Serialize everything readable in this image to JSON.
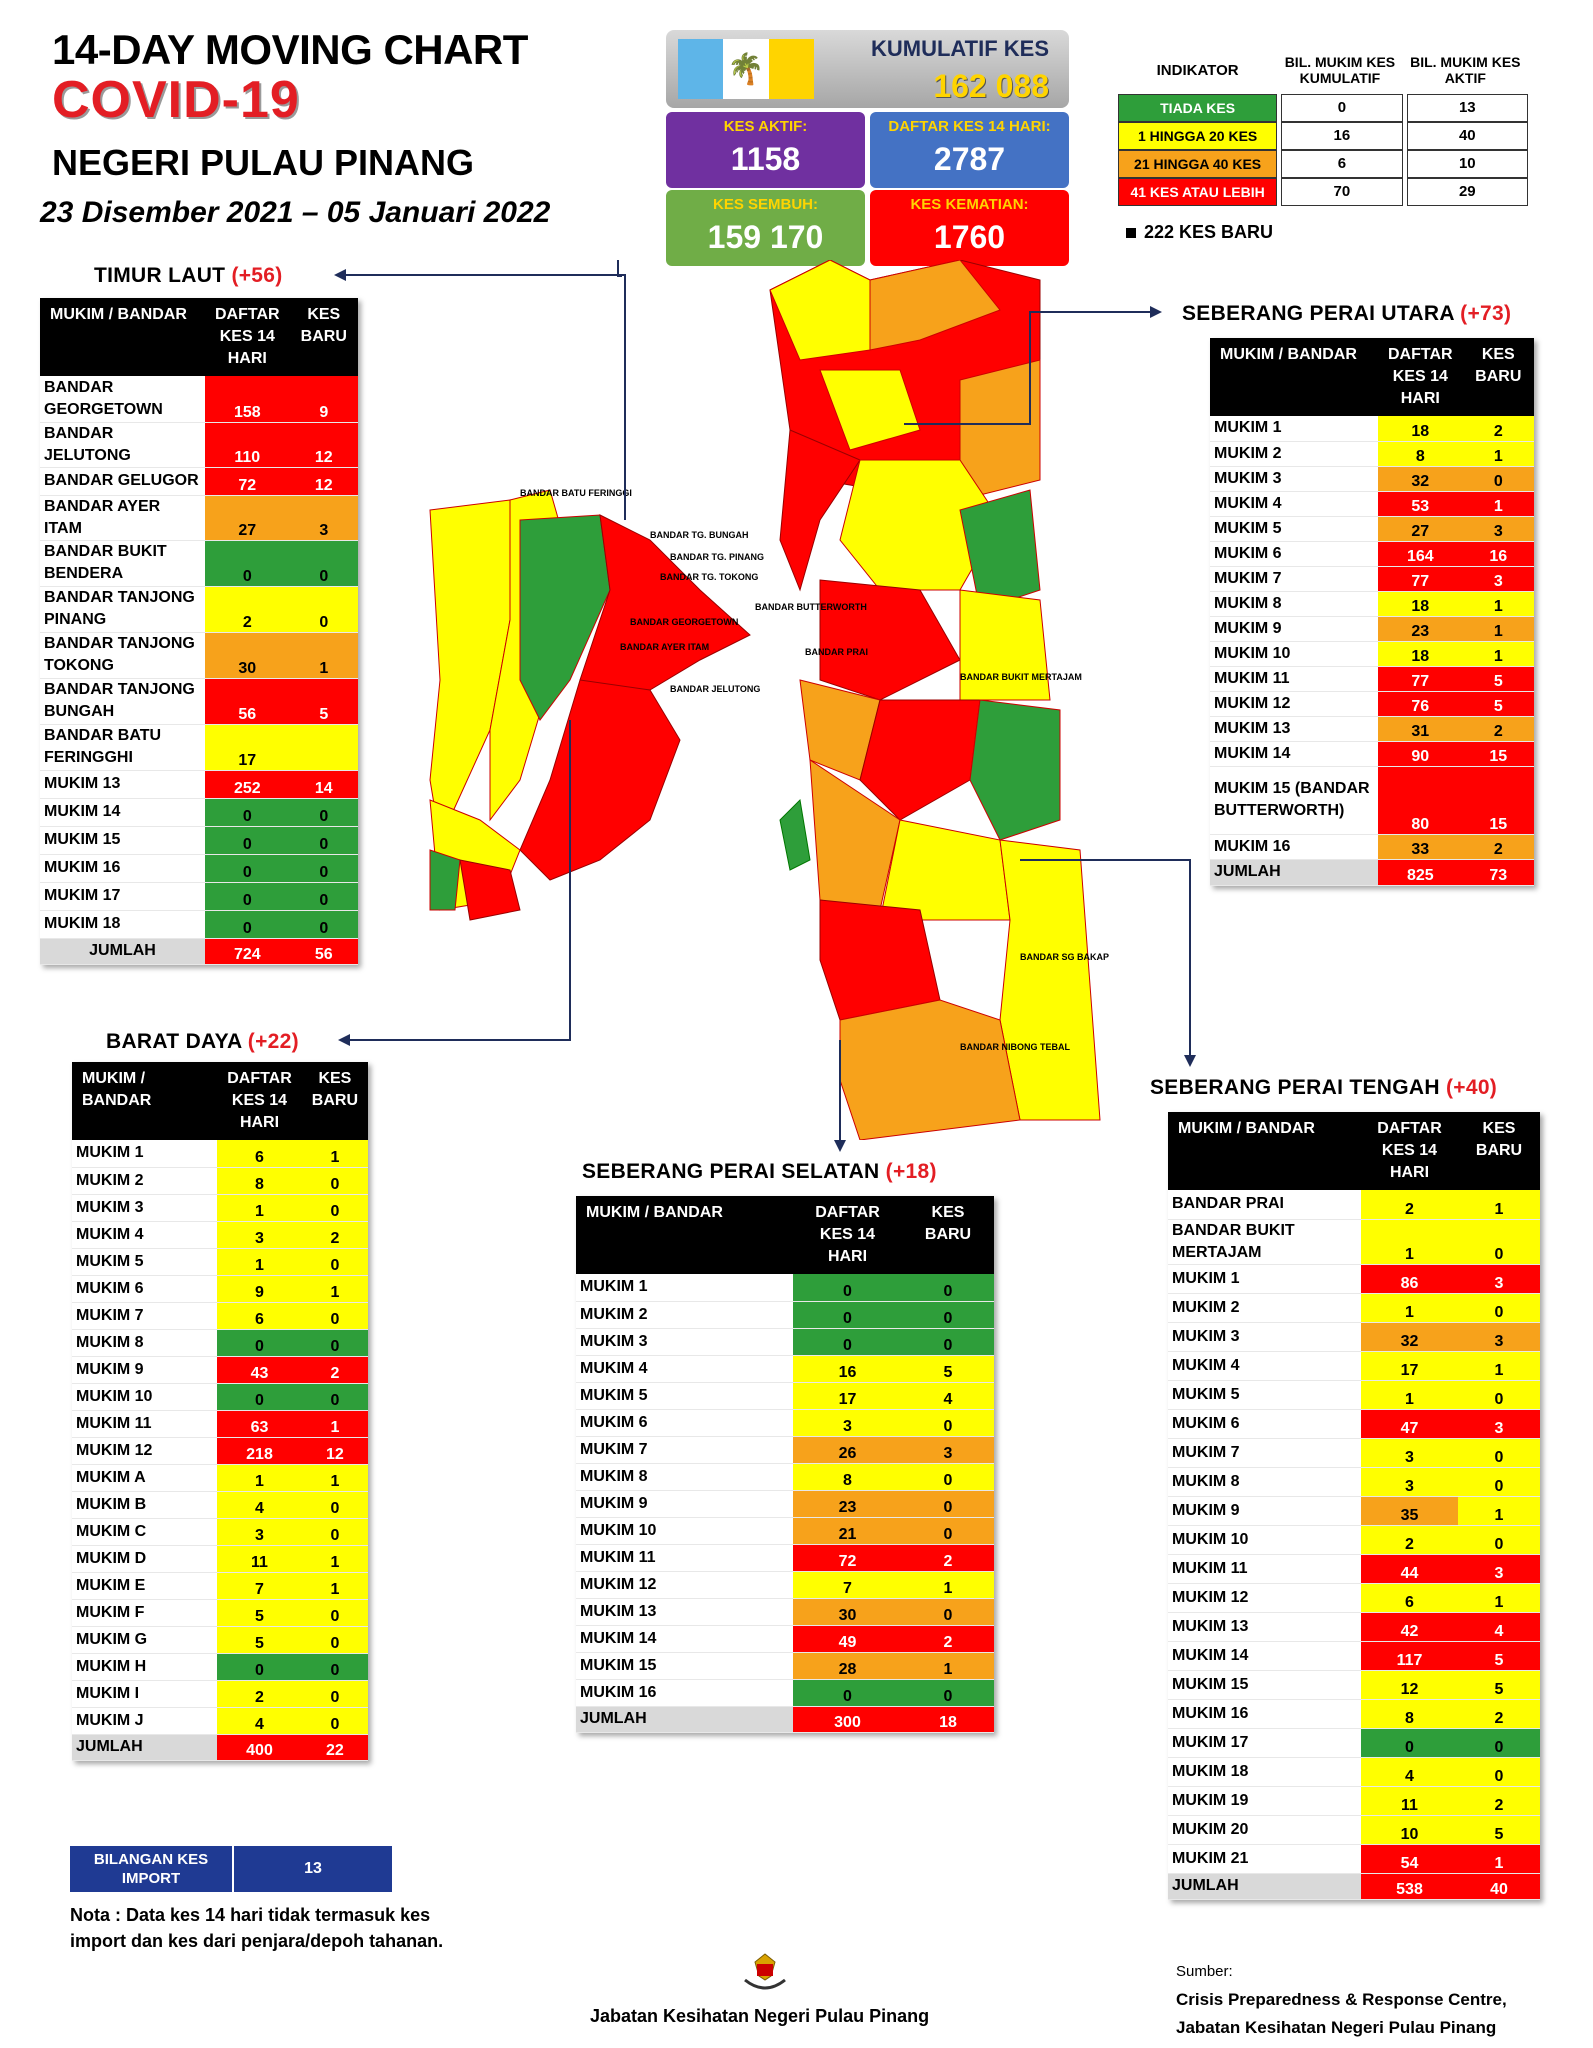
{
  "header": {
    "line1": "14-DAY MOVING CHART",
    "line2": "COVID-19",
    "line3": "NEGERI PULAU PINANG",
    "period": "23 Disember 2021 – 05 Januari 2022"
  },
  "summary": {
    "cumulative_label": "KUMULATIF KES",
    "cumulative_value": "162 088",
    "active_label": "KES AKTIF:",
    "active_value": "1158",
    "list14_label": "DAFTAR KES 14 HARI:",
    "list14_value": "2787",
    "recovered_label": "KES SEMBUH:",
    "recovered_value": "159 170",
    "deaths_label": "KES KEMATIAN:",
    "deaths_value": "1760"
  },
  "legend": {
    "col_indicator": "INDIKATOR",
    "col_cumulative": "BIL. MUKIM KES KUMULATIF",
    "col_active": "BIL. MUKIM KES AKTIF",
    "rows": [
      {
        "label": "TIADA KES",
        "cumulative": "0",
        "active": "13",
        "color": "#2e9e3a"
      },
      {
        "label": "1 HINGGA 20 KES",
        "cumulative": "16",
        "active": "40",
        "color": "#ffff00"
      },
      {
        "label": "21 HINGGA 40 KES",
        "cumulative": "6",
        "active": "10",
        "color": "#f7a21b"
      },
      {
        "label": "41 KES ATAU LEBIH",
        "cumulative": "70",
        "active": "29",
        "color": "#ff0000"
      }
    ],
    "new_cases": "222 KES BARU"
  },
  "columns": {
    "mukim": "MUKIM / BANDAR",
    "daftar": "DAFTAR KES 14 HARI",
    "baru": "KES BARU"
  },
  "regions": {
    "timur_laut": {
      "name": "TIMUR LAUT",
      "delta": "(+56)",
      "rows": [
        [
          "BANDAR GEORGETOWN",
          "158",
          "9",
          "r",
          "r"
        ],
        [
          "BANDAR JELUTONG",
          "110",
          "12",
          "r",
          "r"
        ],
        [
          "BANDAR GELUGOR",
          "72",
          "12",
          "r",
          "r"
        ],
        [
          "BANDAR AYER ITAM",
          "27",
          "3",
          "o",
          "o"
        ],
        [
          "BANDAR BUKIT BENDERA",
          "0",
          "0",
          "g",
          "g"
        ],
        [
          "BANDAR TANJONG PINANG",
          "2",
          "0",
          "y",
          "y"
        ],
        [
          "BANDAR TANJONG TOKONG",
          "30",
          "1",
          "o",
          "o"
        ],
        [
          "BANDAR TANJONG BUNGAH",
          "56",
          "5",
          "r",
          "r"
        ],
        [
          "BANDAR BATU FERINGGHI",
          "17",
          "",
          "y",
          "y"
        ],
        [
          "MUKIM 13",
          "252",
          "14",
          "r",
          "r"
        ],
        [
          "MUKIM 14",
          "0",
          "0",
          "g",
          "g"
        ],
        [
          "MUKIM 15",
          "0",
          "0",
          "g",
          "g"
        ],
        [
          "MUKIM 16",
          "0",
          "0",
          "g",
          "g"
        ],
        [
          "MUKIM 17",
          "0",
          "0",
          "g",
          "g"
        ],
        [
          "MUKIM 18",
          "0",
          "0",
          "g",
          "g"
        ]
      ],
      "total_label": "JUMLAH",
      "total": [
        "724",
        "56"
      ]
    },
    "barat_daya": {
      "name": "BARAT DAYA",
      "delta": "(+22)",
      "rows": [
        [
          "MUKIM 1",
          "6",
          "1",
          "y",
          "y"
        ],
        [
          "MUKIM 2",
          "8",
          "0",
          "y",
          "y"
        ],
        [
          "MUKIM 3",
          "1",
          "0",
          "y",
          "y"
        ],
        [
          "MUKIM 4",
          "3",
          "2",
          "y",
          "y"
        ],
        [
          "MUKIM 5",
          "1",
          "0",
          "y",
          "y"
        ],
        [
          "MUKIM 6",
          "9",
          "1",
          "y",
          "y"
        ],
        [
          "MUKIM 7",
          "6",
          "0",
          "y",
          "y"
        ],
        [
          "MUKIM 8",
          "0",
          "0",
          "g",
          "g"
        ],
        [
          "MUKIM 9",
          "43",
          "2",
          "r",
          "r"
        ],
        [
          "MUKIM 10",
          "0",
          "0",
          "g",
          "g"
        ],
        [
          "MUKIM 11",
          "63",
          "1",
          "r",
          "r"
        ],
        [
          "MUKIM 12",
          "218",
          "12",
          "r",
          "r"
        ],
        [
          "MUKIM A",
          "1",
          "1",
          "y",
          "y"
        ],
        [
          "MUKIM B",
          "4",
          "0",
          "y",
          "y"
        ],
        [
          "MUKIM C",
          "3",
          "0",
          "y",
          "y"
        ],
        [
          "MUKIM D",
          "11",
          "1",
          "y",
          "y"
        ],
        [
          "MUKIM E",
          "7",
          "1",
          "y",
          "y"
        ],
        [
          "MUKIM F",
          "5",
          "0",
          "y",
          "y"
        ],
        [
          "MUKIM G",
          "5",
          "0",
          "y",
          "y"
        ],
        [
          "MUKIM H",
          "0",
          "0",
          "g",
          "g"
        ],
        [
          "MUKIM I",
          "2",
          "0",
          "y",
          "y"
        ],
        [
          "MUKIM J",
          "4",
          "0",
          "y",
          "y"
        ]
      ],
      "total_label": "JUMLAH",
      "total": [
        "400",
        "22"
      ]
    },
    "spu": {
      "name": "SEBERANG PERAI UTARA",
      "delta": "(+73)",
      "rows": [
        [
          "MUKIM 1",
          "18",
          "2",
          "y",
          "y"
        ],
        [
          "MUKIM 2",
          "8",
          "1",
          "y",
          "y"
        ],
        [
          "MUKIM 3",
          "32",
          "0",
          "o",
          "o"
        ],
        [
          "MUKIM 4",
          "53",
          "1",
          "r",
          "r"
        ],
        [
          "MUKIM 5",
          "27",
          "3",
          "o",
          "o"
        ],
        [
          "MUKIM 6",
          "164",
          "16",
          "r",
          "r"
        ],
        [
          "MUKIM 7",
          "77",
          "3",
          "r",
          "r"
        ],
        [
          "MUKIM 8",
          "18",
          "1",
          "y",
          "y"
        ],
        [
          "MUKIM 9",
          "23",
          "1",
          "o",
          "o"
        ],
        [
          "MUKIM 10",
          "18",
          "1",
          "y",
          "y"
        ],
        [
          "MUKIM 11",
          "77",
          "5",
          "r",
          "r"
        ],
        [
          "MUKIM 12",
          "76",
          "5",
          "r",
          "r"
        ],
        [
          "MUKIM 13",
          "31",
          "2",
          "o",
          "o"
        ],
        [
          "MUKIM 14",
          "90",
          "15",
          "r",
          "r"
        ],
        [
          "MUKIM 15 (BANDAR BUTTERWORTH)",
          "80",
          "15",
          "r",
          "r"
        ],
        [
          "MUKIM 16",
          "33",
          "2",
          "o",
          "o"
        ]
      ],
      "total_label": "JUMLAH",
      "total": [
        "825",
        "73"
      ]
    },
    "sps": {
      "name": "SEBERANG PERAI SELATAN",
      "delta": "(+18)",
      "rows": [
        [
          "MUKIM 1",
          "0",
          "0",
          "g",
          "g"
        ],
        [
          "MUKIM 2",
          "0",
          "0",
          "g",
          "g"
        ],
        [
          "MUKIM 3",
          "0",
          "0",
          "g",
          "g"
        ],
        [
          "MUKIM 4",
          "16",
          "5",
          "y",
          "y"
        ],
        [
          "MUKIM 5",
          "17",
          "4",
          "y",
          "y"
        ],
        [
          "MUKIM 6",
          "3",
          "0",
          "y",
          "y"
        ],
        [
          "MUKIM 7",
          "26",
          "3",
          "o",
          "o"
        ],
        [
          "MUKIM 8",
          "8",
          "0",
          "y",
          "y"
        ],
        [
          "MUKIM 9",
          "23",
          "0",
          "o",
          "o"
        ],
        [
          "MUKIM 10",
          "21",
          "0",
          "o",
          "o"
        ],
        [
          "MUKIM 11",
          "72",
          "2",
          "r",
          "r"
        ],
        [
          "MUKIM 12",
          "7",
          "1",
          "y",
          "y"
        ],
        [
          "MUKIM 13",
          "30",
          "0",
          "o",
          "o"
        ],
        [
          "MUKIM 14",
          "49",
          "2",
          "r",
          "r"
        ],
        [
          "MUKIM 15",
          "28",
          "1",
          "o",
          "o"
        ],
        [
          "MUKIM 16",
          "0",
          "0",
          "g",
          "g"
        ]
      ],
      "total_label": "JUMLAH",
      "total": [
        "300",
        "18"
      ]
    },
    "spt": {
      "name": "SEBERANG PERAI TENGAH",
      "delta": "(+40)",
      "rows": [
        [
          "BANDAR PRAI",
          "2",
          "1",
          "y",
          "y"
        ],
        [
          "BANDAR BUKIT MERTAJAM",
          "1",
          "0",
          "y",
          "y"
        ],
        [
          "MUKIM 1",
          "86",
          "3",
          "r",
          "r"
        ],
        [
          "MUKIM 2",
          "1",
          "0",
          "y",
          "y"
        ],
        [
          "MUKIM 3",
          "32",
          "3",
          "o",
          "o"
        ],
        [
          "MUKIM 4",
          "17",
          "1",
          "y",
          "y"
        ],
        [
          "MUKIM 5",
          "1",
          "0",
          "y",
          "y"
        ],
        [
          "MUKIM 6",
          "47",
          "3",
          "r",
          "r"
        ],
        [
          "MUKIM 7",
          "3",
          "0",
          "y",
          "y"
        ],
        [
          "MUKIM 8",
          "3",
          "0",
          "y",
          "y"
        ],
        [
          "MUKIM 9",
          "35",
          "1",
          "o",
          "y"
        ],
        [
          "MUKIM 10",
          "2",
          "0",
          "y",
          "y"
        ],
        [
          "MUKIM 11",
          "44",
          "3",
          "r",
          "r"
        ],
        [
          "MUKIM 12",
          "6",
          "1",
          "y",
          "y"
        ],
        [
          "MUKIM 13",
          "42",
          "4",
          "r",
          "r"
        ],
        [
          "MUKIM 14",
          "117",
          "5",
          "r",
          "r"
        ],
        [
          "MUKIM 15",
          "12",
          "5",
          "y",
          "y"
        ],
        [
          "MUKIM 16",
          "8",
          "2",
          "y",
          "y"
        ],
        [
          "MUKIM 17",
          "0",
          "0",
          "g",
          "g"
        ],
        [
          "MUKIM 18",
          "4",
          "0",
          "y",
          "y"
        ],
        [
          "MUKIM 19",
          "11",
          "2",
          "y",
          "y"
        ],
        [
          "MUKIM 20",
          "10",
          "5",
          "y",
          "y"
        ],
        [
          "MUKIM 21",
          "54",
          "1",
          "r",
          "r"
        ]
      ],
      "total_label": "JUMLAH",
      "total": [
        "538",
        "40"
      ]
    }
  },
  "map_labels": {
    "batu_feringgi": "BANDAR BATU FERINGGI",
    "tg_bungah": "BANDAR TG. BUNGAH",
    "tg_pinang": "BANDAR TG. PINANG",
    "tg_tokong": "BANDAR TG. TOKONG",
    "georgetown": "BANDAR GEORGETOWN",
    "ayer_itam": "BANDAR AYER ITAM",
    "jelutong": "BANDAR JELUTONG",
    "butterworth": "BANDAR BUTTERWORTH",
    "prai": "BANDAR PRAI",
    "bukit_mertajam": "BANDAR BUKIT MERTAJAM",
    "sg_bakap": "BANDAR SG BAKAP",
    "nibong_tebal": "BANDAR NIBONG TEBAL"
  },
  "footer": {
    "import_label": "BILANGAN KES IMPORT",
    "import_value": "13",
    "note": "Nota : Data kes 14 hari tidak termasuk kes import dan kes dari penjara/depoh tahanan.",
    "department": "Jabatan Kesihatan Negeri Pulau Pinang",
    "source_label": "Sumber:",
    "source_line1": "Crisis Preparedness & Response Centre,",
    "source_line2": "Jabatan Kesihatan Negeri Pulau Pinang"
  }
}
